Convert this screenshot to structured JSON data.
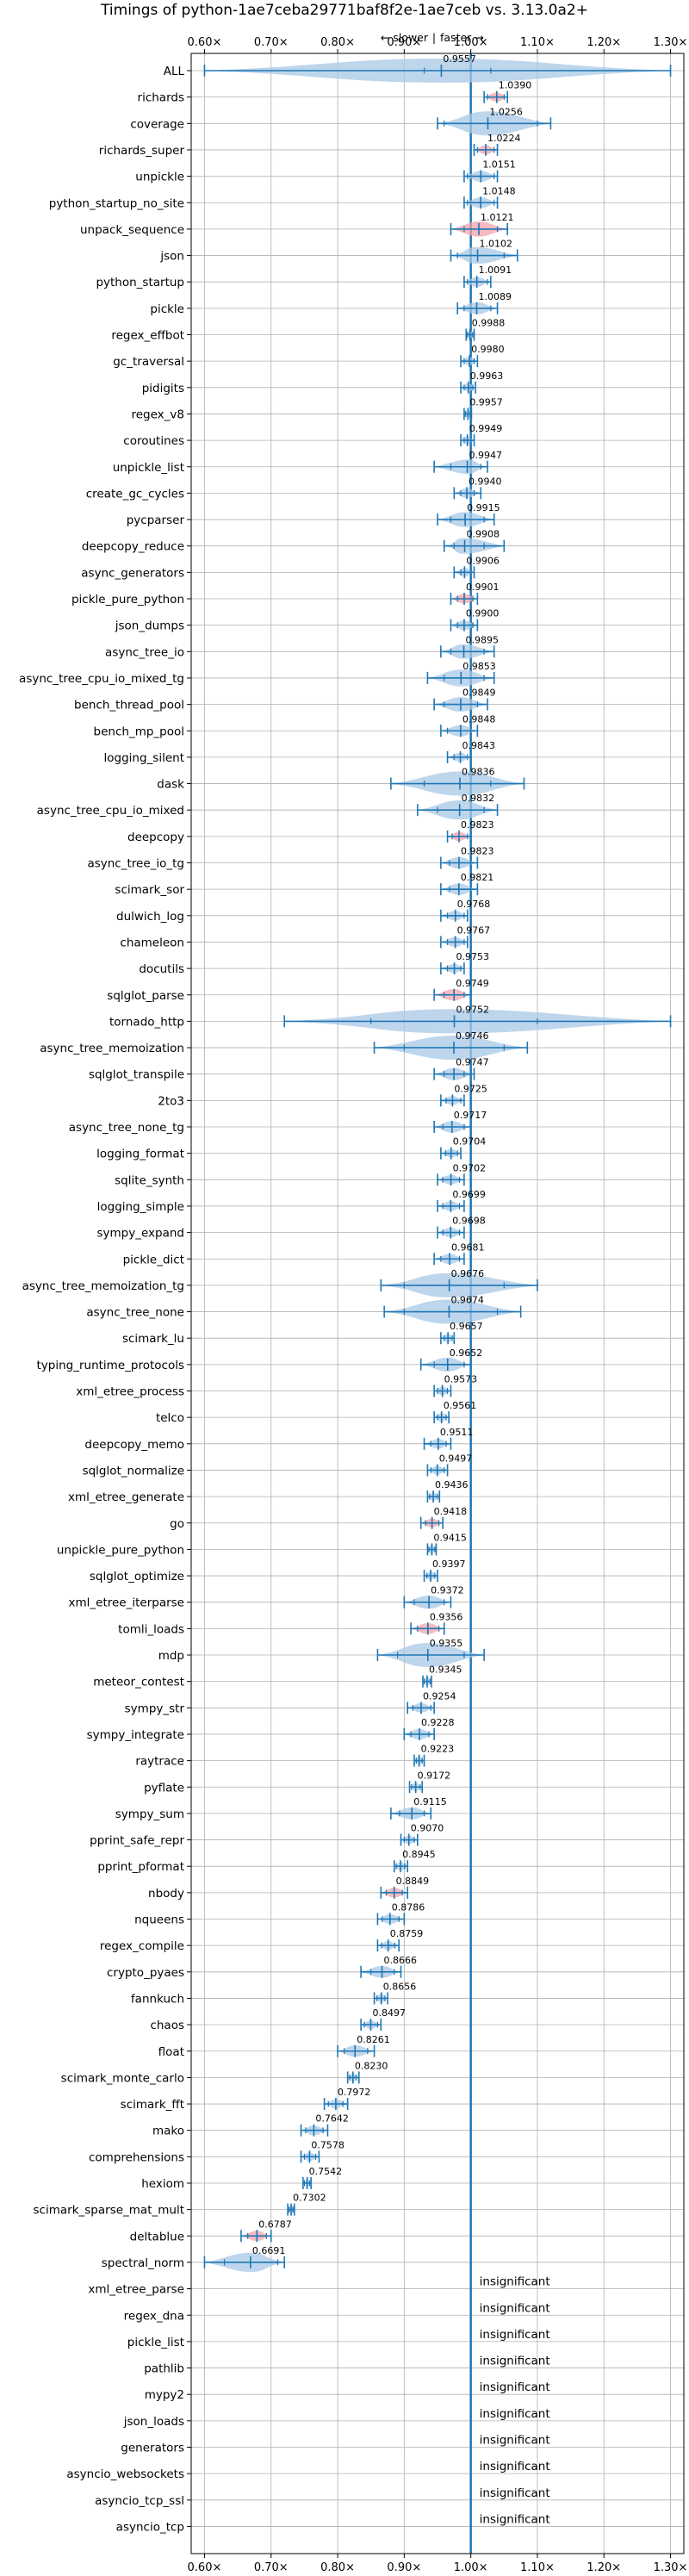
{
  "chart_data": {
    "type": "violin",
    "title": "Timings of python-1ae7ceba29771baf8f2e-1ae7ceb vs. 3.13.0a2+",
    "annotation": {
      "slower": "← slower",
      "separator": "|",
      "faster": "faster →"
    },
    "xlim": [
      0.58,
      1.32
    ],
    "xticks": [
      "0.60×",
      "0.70×",
      "0.80×",
      "0.90×",
      "1.00×",
      "1.10×",
      "1.20×",
      "1.30×"
    ],
    "xtick_values": [
      0.6,
      0.7,
      0.8,
      0.9,
      1.0,
      1.1,
      1.2,
      1.3
    ],
    "grid": true,
    "insignificant_label": "insignificant",
    "colors": {
      "violin": "#a8c8e6",
      "highlight": "#f4a3ab",
      "line": "#1f77b4",
      "grid": "#b0b0b0"
    },
    "benchmarks": [
      {
        "name": "ALL",
        "label": "0.9557",
        "median": 0.9557,
        "min": 0.6,
        "max": 1.3,
        "lo": 0.93,
        "hi": 1.03,
        "highlight": false,
        "wide": true
      },
      {
        "name": "richards",
        "label": "1.0390",
        "median": 1.039,
        "min": 1.02,
        "max": 1.055,
        "lo": 1.025,
        "hi": 1.05,
        "highlight": true
      },
      {
        "name": "coverage",
        "label": "1.0256",
        "median": 1.0256,
        "min": 0.95,
        "max": 1.12,
        "lo": 0.96,
        "hi": 1.1,
        "highlight": false
      },
      {
        "name": "richards_super",
        "label": "1.0224",
        "median": 1.0224,
        "min": 1.005,
        "max": 1.04,
        "lo": 1.01,
        "hi": 1.035,
        "highlight": true
      },
      {
        "name": "unpickle",
        "label": "1.0151",
        "median": 1.0151,
        "min": 0.99,
        "max": 1.04,
        "lo": 0.995,
        "hi": 1.035,
        "highlight": false
      },
      {
        "name": "python_startup_no_site",
        "label": "1.0148",
        "median": 1.0148,
        "min": 0.99,
        "max": 1.04,
        "lo": 0.995,
        "hi": 1.035,
        "highlight": false
      },
      {
        "name": "unpack_sequence",
        "label": "1.0121",
        "median": 1.0121,
        "min": 0.97,
        "max": 1.055,
        "lo": 0.99,
        "hi": 1.04,
        "highlight": true
      },
      {
        "name": "json",
        "label": "1.0102",
        "median": 1.0102,
        "min": 0.97,
        "max": 1.07,
        "lo": 0.98,
        "hi": 1.05,
        "highlight": false
      },
      {
        "name": "python_startup",
        "label": "1.0091",
        "median": 1.0091,
        "min": 0.99,
        "max": 1.03,
        "lo": 0.995,
        "hi": 1.025,
        "highlight": false
      },
      {
        "name": "pickle",
        "label": "1.0089",
        "median": 1.0089,
        "min": 0.98,
        "max": 1.04,
        "lo": 0.99,
        "hi": 1.03,
        "highlight": false
      },
      {
        "name": "regex_effbot",
        "label": "0.9988",
        "median": 0.9988,
        "min": 0.993,
        "max": 1.005,
        "lo": 0.995,
        "hi": 1.003,
        "highlight": false
      },
      {
        "name": "gc_traversal",
        "label": "0.9980",
        "median": 0.998,
        "min": 0.985,
        "max": 1.01,
        "lo": 0.99,
        "hi": 1.005,
        "highlight": false
      },
      {
        "name": "pidigits",
        "label": "0.9963",
        "median": 0.9963,
        "min": 0.985,
        "max": 1.007,
        "lo": 0.99,
        "hi": 1.003,
        "highlight": false
      },
      {
        "name": "regex_v8",
        "label": "0.9957",
        "median": 0.9957,
        "min": 0.99,
        "max": 1.001,
        "lo": 0.992,
        "hi": 0.999,
        "highlight": false
      },
      {
        "name": "coroutines",
        "label": "0.9949",
        "median": 0.9949,
        "min": 0.985,
        "max": 1.005,
        "lo": 0.99,
        "hi": 1.0,
        "highlight": false
      },
      {
        "name": "unpickle_list",
        "label": "0.9947",
        "median": 0.9947,
        "min": 0.945,
        "max": 1.025,
        "lo": 0.97,
        "hi": 1.015,
        "highlight": false
      },
      {
        "name": "create_gc_cycles",
        "label": "0.9940",
        "median": 0.994,
        "min": 0.975,
        "max": 1.015,
        "lo": 0.985,
        "hi": 1.005,
        "highlight": false
      },
      {
        "name": "pycparser",
        "label": "0.9915",
        "median": 0.9915,
        "min": 0.95,
        "max": 1.035,
        "lo": 0.97,
        "hi": 1.02,
        "highlight": false
      },
      {
        "name": "deepcopy_reduce",
        "label": "0.9908",
        "median": 0.9908,
        "min": 0.96,
        "max": 1.05,
        "lo": 0.975,
        "hi": 1.02,
        "highlight": false
      },
      {
        "name": "async_generators",
        "label": "0.9906",
        "median": 0.9906,
        "min": 0.975,
        "max": 1.005,
        "lo": 0.985,
        "hi": 1.0,
        "highlight": false
      },
      {
        "name": "pickle_pure_python",
        "label": "0.9901",
        "median": 0.9901,
        "min": 0.97,
        "max": 1.01,
        "lo": 0.98,
        "hi": 1.003,
        "highlight": true
      },
      {
        "name": "json_dumps",
        "label": "0.9900",
        "median": 0.99,
        "min": 0.97,
        "max": 1.01,
        "lo": 0.98,
        "hi": 1.003,
        "highlight": false
      },
      {
        "name": "async_tree_io",
        "label": "0.9895",
        "median": 0.9895,
        "min": 0.955,
        "max": 1.035,
        "lo": 0.97,
        "hi": 1.02,
        "highlight": false
      },
      {
        "name": "async_tree_cpu_io_mixed_tg",
        "label": "0.9853",
        "median": 0.9853,
        "min": 0.935,
        "max": 1.035,
        "lo": 0.96,
        "hi": 1.02,
        "highlight": false
      },
      {
        "name": "bench_thread_pool",
        "label": "0.9849",
        "median": 0.9849,
        "min": 0.945,
        "max": 1.025,
        "lo": 0.96,
        "hi": 1.01,
        "highlight": false
      },
      {
        "name": "bench_mp_pool",
        "label": "0.9848",
        "median": 0.9848,
        "min": 0.955,
        "max": 1.01,
        "lo": 0.965,
        "hi": 1.0,
        "highlight": false
      },
      {
        "name": "logging_silent",
        "label": "0.9843",
        "median": 0.9843,
        "min": 0.965,
        "max": 1.0,
        "lo": 0.975,
        "hi": 0.995,
        "highlight": false
      },
      {
        "name": "dask",
        "label": "0.9836",
        "median": 0.9836,
        "min": 0.88,
        "max": 1.08,
        "lo": 0.93,
        "hi": 1.03,
        "highlight": false
      },
      {
        "name": "async_tree_cpu_io_mixed",
        "label": "0.9832",
        "median": 0.9832,
        "min": 0.92,
        "max": 1.04,
        "lo": 0.95,
        "hi": 1.02,
        "highlight": false
      },
      {
        "name": "deepcopy",
        "label": "0.9823",
        "median": 0.9823,
        "min": 0.965,
        "max": 1.0,
        "lo": 0.972,
        "hi": 0.995,
        "highlight": true
      },
      {
        "name": "async_tree_io_tg",
        "label": "0.9823",
        "median": 0.9823,
        "min": 0.955,
        "max": 1.01,
        "lo": 0.968,
        "hi": 1.0,
        "highlight": false
      },
      {
        "name": "scimark_sor",
        "label": "0.9821",
        "median": 0.9821,
        "min": 0.955,
        "max": 1.01,
        "lo": 0.968,
        "hi": 1.0,
        "highlight": false
      },
      {
        "name": "dulwich_log",
        "label": "0.9768",
        "median": 0.9768,
        "min": 0.955,
        "max": 0.995,
        "lo": 0.965,
        "hi": 0.99,
        "highlight": false
      },
      {
        "name": "chameleon",
        "label": "0.9767",
        "median": 0.9767,
        "min": 0.955,
        "max": 0.995,
        "lo": 0.965,
        "hi": 0.99,
        "highlight": false
      },
      {
        "name": "docutils",
        "label": "0.9753",
        "median": 0.9753,
        "min": 0.955,
        "max": 0.99,
        "lo": 0.965,
        "hi": 0.985,
        "highlight": false
      },
      {
        "name": "sqlglot_parse",
        "label": "0.9749",
        "median": 0.9749,
        "min": 0.945,
        "max": 1.0,
        "lo": 0.96,
        "hi": 0.99,
        "highlight": true
      },
      {
        "name": "tornado_http",
        "label": "0.9752",
        "median": 0.9752,
        "min": 0.72,
        "max": 1.3,
        "lo": 0.85,
        "hi": 1.1,
        "highlight": false,
        "wide": true
      },
      {
        "name": "async_tree_memoization",
        "label": "0.9746",
        "median": 0.9746,
        "min": 0.855,
        "max": 1.085,
        "lo": 0.9,
        "hi": 1.05,
        "highlight": false
      },
      {
        "name": "sqlglot_transpile",
        "label": "0.9747",
        "median": 0.9747,
        "min": 0.945,
        "max": 1.005,
        "lo": 0.96,
        "hi": 0.99,
        "highlight": false
      },
      {
        "name": "2to3",
        "label": "0.9725",
        "median": 0.9725,
        "min": 0.955,
        "max": 0.99,
        "lo": 0.963,
        "hi": 0.985,
        "highlight": false
      },
      {
        "name": "async_tree_none_tg",
        "label": "0.9717",
        "median": 0.9717,
        "min": 0.945,
        "max": 1.0,
        "lo": 0.958,
        "hi": 0.99,
        "highlight": false
      },
      {
        "name": "logging_format",
        "label": "0.9704",
        "median": 0.9704,
        "min": 0.955,
        "max": 0.985,
        "lo": 0.962,
        "hi": 0.98,
        "highlight": false
      },
      {
        "name": "sqlite_synth",
        "label": "0.9702",
        "median": 0.9702,
        "min": 0.95,
        "max": 0.99,
        "lo": 0.958,
        "hi": 0.983,
        "highlight": false
      },
      {
        "name": "logging_simple",
        "label": "0.9699",
        "median": 0.9699,
        "min": 0.95,
        "max": 0.99,
        "lo": 0.958,
        "hi": 0.983,
        "highlight": false
      },
      {
        "name": "sympy_expand",
        "label": "0.9698",
        "median": 0.9698,
        "min": 0.95,
        "max": 0.99,
        "lo": 0.958,
        "hi": 0.983,
        "highlight": false
      },
      {
        "name": "pickle_dict",
        "label": "0.9681",
        "median": 0.9681,
        "min": 0.945,
        "max": 0.99,
        "lo": 0.955,
        "hi": 0.983,
        "highlight": false
      },
      {
        "name": "async_tree_memoization_tg",
        "label": "0.9676",
        "median": 0.9676,
        "min": 0.865,
        "max": 1.1,
        "lo": 0.9,
        "hi": 1.05,
        "highlight": false
      },
      {
        "name": "async_tree_none",
        "label": "0.9674",
        "median": 0.9674,
        "min": 0.87,
        "max": 1.075,
        "lo": 0.9,
        "hi": 1.04,
        "highlight": false
      },
      {
        "name": "scimark_lu",
        "label": "0.9657",
        "median": 0.9657,
        "min": 0.955,
        "max": 0.975,
        "lo": 0.96,
        "hi": 0.972,
        "highlight": false
      },
      {
        "name": "typing_runtime_protocols",
        "label": "0.9652",
        "median": 0.9652,
        "min": 0.925,
        "max": 1.0,
        "lo": 0.945,
        "hi": 0.99,
        "highlight": false
      },
      {
        "name": "xml_etree_process",
        "label": "0.9573",
        "median": 0.9573,
        "min": 0.945,
        "max": 0.97,
        "lo": 0.95,
        "hi": 0.965,
        "highlight": false
      },
      {
        "name": "telco",
        "label": "0.9561",
        "median": 0.9561,
        "min": 0.945,
        "max": 0.967,
        "lo": 0.95,
        "hi": 0.963,
        "highlight": false
      },
      {
        "name": "deepcopy_memo",
        "label": "0.9511",
        "median": 0.9511,
        "min": 0.93,
        "max": 0.97,
        "lo": 0.94,
        "hi": 0.963,
        "highlight": false
      },
      {
        "name": "sqlglot_normalize",
        "label": "0.9497",
        "median": 0.9497,
        "min": 0.935,
        "max": 0.965,
        "lo": 0.94,
        "hi": 0.96,
        "highlight": false
      },
      {
        "name": "xml_etree_generate",
        "label": "0.9436",
        "median": 0.9436,
        "min": 0.935,
        "max": 0.953,
        "lo": 0.938,
        "hi": 0.95,
        "highlight": false
      },
      {
        "name": "go",
        "label": "0.9418",
        "median": 0.9418,
        "min": 0.925,
        "max": 0.958,
        "lo": 0.932,
        "hi": 0.952,
        "highlight": true
      },
      {
        "name": "unpickle_pure_python",
        "label": "0.9415",
        "median": 0.9415,
        "min": 0.935,
        "max": 0.948,
        "lo": 0.937,
        "hi": 0.946,
        "highlight": false
      },
      {
        "name": "sqlglot_optimize",
        "label": "0.9397",
        "median": 0.9397,
        "min": 0.93,
        "max": 0.95,
        "lo": 0.934,
        "hi": 0.946,
        "highlight": false
      },
      {
        "name": "xml_etree_iterparse",
        "label": "0.9372",
        "median": 0.9372,
        "min": 0.9,
        "max": 0.97,
        "lo": 0.915,
        "hi": 0.96,
        "highlight": false
      },
      {
        "name": "tomli_loads",
        "label": "0.9356",
        "median": 0.9356,
        "min": 0.91,
        "max": 0.96,
        "lo": 0.92,
        "hi": 0.952,
        "highlight": true
      },
      {
        "name": "mdp",
        "label": "0.9355",
        "median": 0.9355,
        "min": 0.86,
        "max": 1.02,
        "lo": 0.89,
        "hi": 0.99,
        "highlight": false
      },
      {
        "name": "meteor_contest",
        "label": "0.9345",
        "median": 0.9345,
        "min": 0.928,
        "max": 0.941,
        "lo": 0.93,
        "hi": 0.939,
        "highlight": false
      },
      {
        "name": "sympy_str",
        "label": "0.9254",
        "median": 0.9254,
        "min": 0.905,
        "max": 0.945,
        "lo": 0.913,
        "hi": 0.94,
        "highlight": false
      },
      {
        "name": "sympy_integrate",
        "label": "0.9228",
        "median": 0.9228,
        "min": 0.9,
        "max": 0.945,
        "lo": 0.91,
        "hi": 0.937,
        "highlight": false
      },
      {
        "name": "raytrace",
        "label": "0.9223",
        "median": 0.9223,
        "min": 0.915,
        "max": 0.93,
        "lo": 0.918,
        "hi": 0.927,
        "highlight": false
      },
      {
        "name": "pyflate",
        "label": "0.9172",
        "median": 0.9172,
        "min": 0.908,
        "max": 0.927,
        "lo": 0.911,
        "hi": 0.924,
        "highlight": false
      },
      {
        "name": "sympy_sum",
        "label": "0.9115",
        "median": 0.9115,
        "min": 0.88,
        "max": 0.94,
        "lo": 0.893,
        "hi": 0.93,
        "highlight": false
      },
      {
        "name": "pprint_safe_repr",
        "label": "0.9070",
        "median": 0.907,
        "min": 0.895,
        "max": 0.92,
        "lo": 0.9,
        "hi": 0.915,
        "highlight": false
      },
      {
        "name": "pprint_pformat",
        "label": "0.8945",
        "median": 0.8945,
        "min": 0.885,
        "max": 0.905,
        "lo": 0.888,
        "hi": 0.901,
        "highlight": false
      },
      {
        "name": "nbody",
        "label": "0.8849",
        "median": 0.8849,
        "min": 0.865,
        "max": 0.905,
        "lo": 0.873,
        "hi": 0.897,
        "highlight": true
      },
      {
        "name": "nqueens",
        "label": "0.8786",
        "median": 0.8786,
        "min": 0.86,
        "max": 0.9,
        "lo": 0.867,
        "hi": 0.892,
        "highlight": false
      },
      {
        "name": "regex_compile",
        "label": "0.8759",
        "median": 0.8759,
        "min": 0.86,
        "max": 0.892,
        "lo": 0.866,
        "hi": 0.886,
        "highlight": false
      },
      {
        "name": "crypto_pyaes",
        "label": "0.8666",
        "median": 0.8666,
        "min": 0.835,
        "max": 0.895,
        "lo": 0.85,
        "hi": 0.885,
        "highlight": false
      },
      {
        "name": "fannkuch",
        "label": "0.8656",
        "median": 0.8656,
        "min": 0.855,
        "max": 0.875,
        "lo": 0.859,
        "hi": 0.871,
        "highlight": false
      },
      {
        "name": "chaos",
        "label": "0.8497",
        "median": 0.8497,
        "min": 0.835,
        "max": 0.865,
        "lo": 0.84,
        "hi": 0.86,
        "highlight": false
      },
      {
        "name": "float",
        "label": "0.8261",
        "median": 0.8261,
        "min": 0.8,
        "max": 0.855,
        "lo": 0.81,
        "hi": 0.845,
        "highlight": false
      },
      {
        "name": "scimark_monte_carlo",
        "label": "0.8230",
        "median": 0.823,
        "min": 0.815,
        "max": 0.832,
        "lo": 0.818,
        "hi": 0.828,
        "highlight": false
      },
      {
        "name": "scimark_fft",
        "label": "0.7972",
        "median": 0.7972,
        "min": 0.78,
        "max": 0.815,
        "lo": 0.786,
        "hi": 0.808,
        "highlight": false
      },
      {
        "name": "mako",
        "label": "0.7642",
        "median": 0.7642,
        "min": 0.745,
        "max": 0.785,
        "lo": 0.752,
        "hi": 0.778,
        "highlight": false
      },
      {
        "name": "comprehensions",
        "label": "0.7578",
        "median": 0.7578,
        "min": 0.745,
        "max": 0.772,
        "lo": 0.75,
        "hi": 0.767,
        "highlight": false
      },
      {
        "name": "hexiom",
        "label": "0.7542",
        "median": 0.7542,
        "min": 0.748,
        "max": 0.76,
        "lo": 0.75,
        "hi": 0.758,
        "highlight": false
      },
      {
        "name": "scimark_sparse_mat_mult",
        "label": "0.7302",
        "median": 0.7302,
        "min": 0.725,
        "max": 0.735,
        "lo": 0.727,
        "hi": 0.733,
        "highlight": false
      },
      {
        "name": "deltablue",
        "label": "0.6787",
        "median": 0.6787,
        "min": 0.655,
        "max": 0.7,
        "lo": 0.665,
        "hi": 0.693,
        "highlight": true
      },
      {
        "name": "spectral_norm",
        "label": "0.6691",
        "median": 0.6691,
        "min": 0.6,
        "max": 0.72,
        "lo": 0.63,
        "hi": 0.71,
        "highlight": false
      },
      {
        "name": "xml_etree_parse",
        "label": "insignificant",
        "insignificant": true
      },
      {
        "name": "regex_dna",
        "label": "insignificant",
        "insignificant": true
      },
      {
        "name": "pickle_list",
        "label": "insignificant",
        "insignificant": true
      },
      {
        "name": "pathlib",
        "label": "insignificant",
        "insignificant": true
      },
      {
        "name": "mypy2",
        "label": "insignificant",
        "insignificant": true
      },
      {
        "name": "json_loads",
        "label": "insignificant",
        "insignificant": true
      },
      {
        "name": "generators",
        "label": "insignificant",
        "insignificant": true
      },
      {
        "name": "asyncio_websockets",
        "label": "insignificant",
        "insignificant": true
      },
      {
        "name": "asyncio_tcp_ssl",
        "label": "insignificant",
        "insignificant": true
      },
      {
        "name": "asyncio_tcp",
        "label": "insignificant",
        "insignificant": true
      }
    ]
  }
}
